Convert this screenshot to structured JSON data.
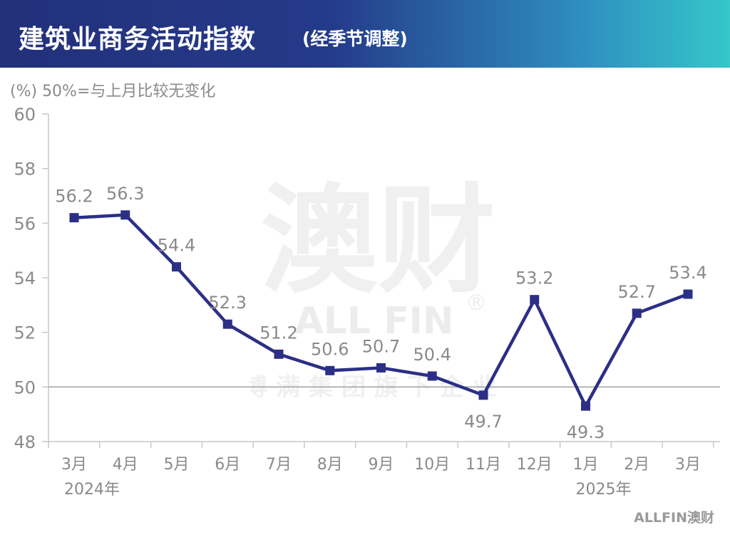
{
  "header": {
    "title": "建筑业商务活动指数",
    "subtitle": "(经季节调整)"
  },
  "unit_note": "(%) 50%=与上月比较无变化",
  "watermark": {
    "main": "澳财",
    "brand": "ALL FIN",
    "reg": "®",
    "tagline": "博满集团旗下企业"
  },
  "brand_logo": "ALLFIN澳财",
  "colors": {
    "header_start": "#23307a",
    "header_end": "#35c7c9",
    "line": "#2b2f86",
    "axis_text": "#8a8a8a",
    "data_label": "#8a8a8a",
    "axis_line": "#c8c8c8"
  },
  "chart_data": {
    "type": "line",
    "categories": [
      "3月",
      "4月",
      "5月",
      "6月",
      "7月",
      "8月",
      "9月",
      "10月",
      "11月",
      "12月",
      "1月",
      "2月",
      "3月"
    ],
    "year_labels": [
      {
        "index": 0,
        "text": "2024年"
      },
      {
        "index": 10,
        "text": "2025年"
      }
    ],
    "series": [
      {
        "values": [
          56.2,
          56.3,
          54.4,
          52.3,
          51.2,
          50.6,
          50.7,
          50.4,
          49.7,
          53.2,
          49.3,
          52.7,
          53.4
        ]
      }
    ],
    "ylim": [
      48,
      60
    ],
    "yticks": [
      48,
      50,
      52,
      54,
      56,
      58,
      60
    ],
    "reference_line": 50,
    "grid": false,
    "xlabel": "",
    "ylabel": "(%) 50%=与上月比较无变化",
    "title": "建筑业商务活动指数",
    "label_positions": [
      "above",
      "above",
      "above",
      "above",
      "above",
      "above",
      "above",
      "above",
      "below",
      "above",
      "below",
      "above",
      "above"
    ]
  }
}
